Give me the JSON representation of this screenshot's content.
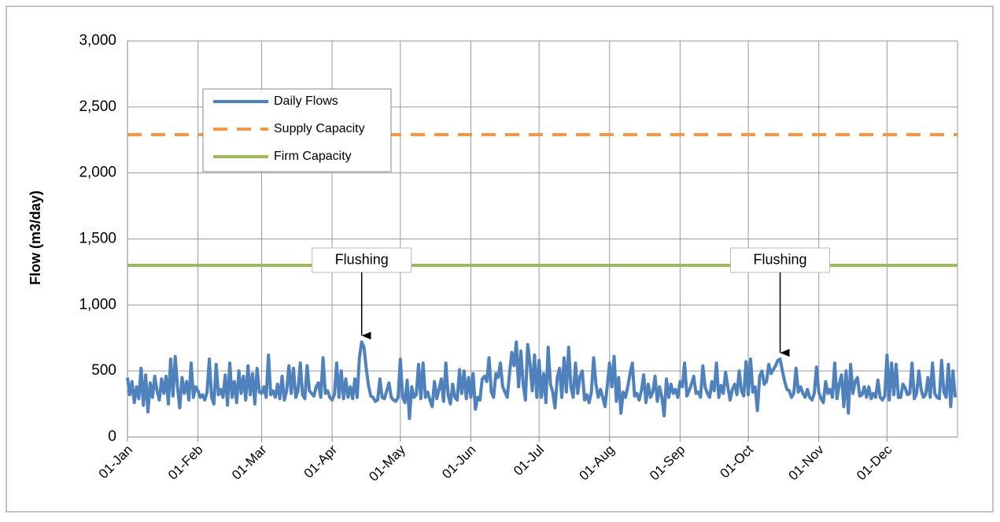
{
  "chart_data": {
    "type": "line",
    "ylabel": "Flow (m3/day)",
    "categories": [
      "01-Jan",
      null,
      null,
      null,
      null,
      null,
      null,
      null,
      null,
      null,
      null,
      null,
      null,
      null,
      null,
      null,
      null,
      null,
      null,
      null,
      null,
      null,
      null,
      null,
      null,
      null,
      null,
      null,
      null,
      null,
      null,
      "01-Feb",
      null,
      null,
      null,
      null,
      null,
      null,
      null,
      null,
      null,
      null,
      null,
      null,
      null,
      null,
      null,
      null,
      null,
      null,
      null,
      null,
      null,
      null,
      null,
      null,
      null,
      null,
      null,
      "01-Mar",
      null,
      null,
      null,
      null,
      null,
      null,
      null,
      null,
      null,
      null,
      null,
      null,
      null,
      null,
      null,
      null,
      null,
      null,
      null,
      null,
      null,
      null,
      null,
      null,
      null,
      null,
      null,
      null,
      null,
      null,
      "01-Apr",
      null,
      null,
      null,
      null,
      null,
      null,
      null,
      null,
      null,
      null,
      null,
      null,
      null,
      null,
      null,
      null,
      null,
      null,
      null,
      null,
      null,
      null,
      null,
      null,
      null,
      null,
      null,
      null,
      null,
      "01-May",
      null,
      null,
      null,
      null,
      null,
      null,
      null,
      null,
      null,
      null,
      null,
      null,
      null,
      null,
      null,
      null,
      null,
      null,
      null,
      null,
      null,
      null,
      null,
      null,
      null,
      null,
      null,
      null,
      null,
      null,
      "01-Jun",
      null,
      null,
      null,
      null,
      null,
      null,
      null,
      null,
      null,
      null,
      null,
      null,
      null,
      null,
      null,
      null,
      null,
      null,
      null,
      null,
      null,
      null,
      null,
      null,
      null,
      null,
      null,
      null,
      null,
      "01-Jul",
      null,
      null,
      null,
      null,
      null,
      null,
      null,
      null,
      null,
      null,
      null,
      null,
      null,
      null,
      null,
      null,
      null,
      null,
      null,
      null,
      null,
      null,
      null,
      null,
      null,
      null,
      null,
      null,
      null,
      null,
      "01-Aug",
      null,
      null,
      null,
      null,
      null,
      null,
      null,
      null,
      null,
      null,
      null,
      null,
      null,
      null,
      null,
      null,
      null,
      null,
      null,
      null,
      null,
      null,
      null,
      null,
      null,
      null,
      null,
      null,
      null,
      null,
      "01-Sep",
      null,
      null,
      null,
      null,
      null,
      null,
      null,
      null,
      null,
      null,
      null,
      null,
      null,
      null,
      null,
      null,
      null,
      null,
      null,
      null,
      null,
      null,
      null,
      null,
      null,
      null,
      null,
      null,
      null,
      "01-Oct",
      null,
      null,
      null,
      null,
      null,
      null,
      null,
      null,
      null,
      null,
      null,
      null,
      null,
      null,
      null,
      null,
      null,
      null,
      null,
      null,
      null,
      null,
      null,
      null,
      null,
      null,
      null,
      null,
      null,
      null,
      "01-Nov",
      null,
      null,
      null,
      null,
      null,
      null,
      null,
      null,
      null,
      null,
      null,
      null,
      null,
      null,
      null,
      null,
      null,
      null,
      null,
      null,
      null,
      null,
      null,
      null,
      null,
      null,
      null,
      null,
      null,
      "01-Dec",
      null,
      null,
      null,
      null,
      null,
      null,
      null,
      null,
      null,
      null,
      null,
      null,
      null,
      null,
      null,
      null,
      null,
      null,
      null,
      null,
      null,
      null,
      null,
      null,
      null,
      null,
      null,
      null,
      null,
      null
    ],
    "series": [
      {
        "name": "Daily Flows",
        "color": "#4f81bd",
        "values": [
          450,
          320,
          420,
          260,
          380,
          290,
          520,
          240,
          470,
          190,
          410,
          300,
          460,
          350,
          280,
          440,
          330,
          460,
          250,
          590,
          310,
          610,
          380,
          220,
          450,
          330,
          420,
          280,
          560,
          300,
          380,
          350,
          300,
          320,
          280,
          340,
          590,
          300,
          250,
          550,
          320,
          360,
          300,
          470,
          240,
          560,
          300,
          420,
          260,
          500,
          330,
          460,
          280,
          540,
          320,
          480,
          250,
          520,
          340,
          330,
          380,
          300,
          620,
          320,
          350,
          300,
          400,
          290,
          460,
          280,
          350,
          540,
          330,
          520,
          300,
          350,
          560,
          320,
          290,
          540,
          350,
          330,
          310,
          380,
          410,
          300,
          600,
          330,
          350,
          300,
          280,
          320,
          560,
          300,
          500,
          290,
          440,
          300,
          380,
          290,
          440,
          300,
          600,
          720,
          680,
          520,
          390,
          310,
          300,
          270,
          280,
          440,
          300,
          290,
          350,
          410,
          300,
          280,
          270,
          300,
          590,
          300,
          260,
          430,
          140,
          380,
          300,
          320,
          550,
          290,
          560,
          300,
          340,
          280,
          230,
          420,
          290,
          360,
          440,
          270,
          560,
          320,
          250,
          400,
          300,
          280,
          510,
          330,
          500,
          290,
          450,
          300,
          480,
          210,
          300,
          280,
          440,
          460,
          420,
          600,
          340,
          300,
          480,
          450,
          560,
          380,
          340,
          300,
          480,
          640,
          540,
          720,
          380,
          650,
          400,
          280,
          700,
          560,
          350,
          620,
          300,
          580,
          300,
          480,
          260,
          680,
          400,
          340,
          220,
          450,
          520,
          300,
          600,
          340,
          680,
          380,
          300,
          560,
          330,
          460,
          500,
          280,
          320,
          260,
          340,
          600,
          400,
          300,
          360,
          300,
          230,
          390,
          560,
          380,
          610,
          270,
          450,
          180,
          340,
          300,
          380,
          480,
          560,
          310,
          330,
          280,
          350,
          470,
          260,
          400,
          300,
          340,
          460,
          270,
          380,
          300,
          160,
          440,
          300,
          400,
          330,
          360,
          300,
          420,
          380,
          560,
          310,
          350,
          400,
          460,
          330,
          340,
          300,
          540,
          380,
          330,
          300,
          420,
          350,
          560,
          300,
          390,
          330,
          490,
          380,
          280,
          360,
          400,
          320,
          500,
          350,
          310,
          570,
          320,
          590,
          340,
          380,
          200,
          460,
          500,
          400,
          420,
          550,
          480,
          510,
          540,
          580,
          590,
          500,
          420,
          360,
          350,
          300,
          330,
          520,
          340,
          380,
          330,
          300,
          360,
          300,
          280,
          330,
          530,
          340,
          290,
          260,
          420,
          330,
          360,
          300,
          560,
          290,
          400,
          470,
          230,
          500,
          180,
          550,
          330,
          420,
          450,
          310,
          320,
          380,
          300,
          380,
          290,
          330,
          300,
          430,
          300,
          280,
          310,
          620,
          280,
          560,
          320,
          550,
          300,
          300,
          400,
          370,
          320,
          330,
          560,
          290,
          330,
          500,
          360,
          300,
          320,
          450,
          300,
          560,
          330,
          300,
          290,
          580,
          340,
          300,
          550,
          230,
          500,
          300
        ]
      }
    ],
    "lines": [
      {
        "name": "Supply Capacity",
        "color": "#f79646",
        "value": 2290,
        "dashed": true
      },
      {
        "name": "Firm Capacity",
        "color": "#9bbb59",
        "value": 1300,
        "dashed": false
      }
    ],
    "annotations": [
      {
        "text": "Flushing",
        "x": 103
      },
      {
        "text": "Flushing",
        "x": 287
      }
    ],
    "ylim": [
      0,
      3000
    ],
    "yticks": [
      {
        "value": 0,
        "label": "0"
      },
      {
        "value": 500,
        "label": "500"
      },
      {
        "value": 1000,
        "label": "1,000"
      },
      {
        "value": 1500,
        "label": "1,500"
      },
      {
        "value": 2000,
        "label": "2,000"
      },
      {
        "value": 2500,
        "label": "2,500"
      },
      {
        "value": 3000,
        "label": "3,000"
      }
    ],
    "grid": true
  }
}
